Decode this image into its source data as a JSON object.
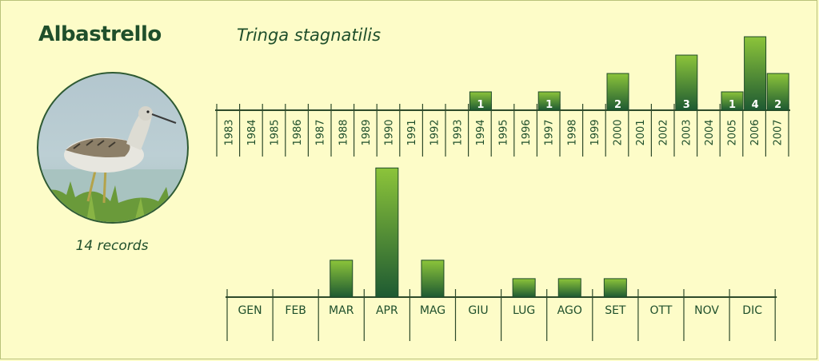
{
  "header": {
    "common_name": "Albastrello",
    "latin_name": "Tringa stagnatilis",
    "records_text": "14 records"
  },
  "colors": {
    "background": "#fdfcc8",
    "text": "#1f4f2b",
    "bar_light": "#8cc43a",
    "bar_dark": "#1e5a32",
    "axis": "#2e4a2a"
  },
  "chart_data": [
    {
      "type": "bar",
      "categories": [
        "1983",
        "1984",
        "1985",
        "1986",
        "1987",
        "1988",
        "1989",
        "1990",
        "1991",
        "1992",
        "1993",
        "1994",
        "1995",
        "1996",
        "1997",
        "1998",
        "1999",
        "2000",
        "2001",
        "2002",
        "2003",
        "2004",
        "2005",
        "2006",
        "2007"
      ],
      "values": [
        0,
        0,
        0,
        0,
        0,
        0,
        0,
        0,
        0,
        0,
        0,
        1,
        0,
        0,
        1,
        0,
        0,
        2,
        0,
        0,
        3,
        0,
        1,
        4,
        2
      ],
      "data_labels": true,
      "ylim": [
        0,
        4
      ],
      "xlabel": "",
      "ylabel": ""
    },
    {
      "type": "bar",
      "categories": [
        "GEN",
        "FEB",
        "MAR",
        "APR",
        "MAG",
        "GIU",
        "LUG",
        "AGO",
        "SET",
        "OTT",
        "NOV",
        "DIC"
      ],
      "values": [
        0,
        0,
        2,
        7,
        2,
        0,
        1,
        1,
        1,
        0,
        0,
        0
      ],
      "data_labels": false,
      "ylim": [
        0,
        7
      ],
      "xlabel": "",
      "ylabel": ""
    }
  ]
}
